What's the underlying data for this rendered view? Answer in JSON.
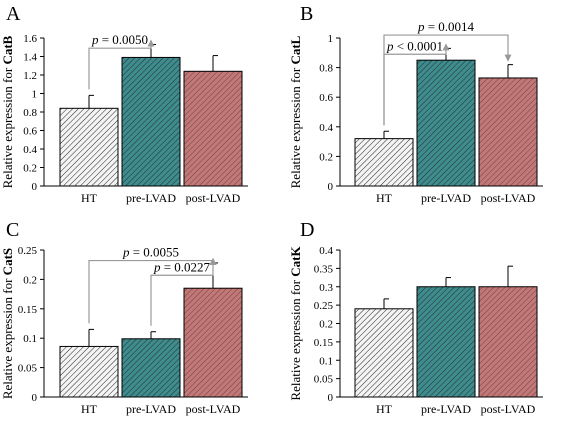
{
  "colors": {
    "HT": "#f4f4f4",
    "pre-LVAD": "#3e8c8e",
    "post-LVAD": "#c47777",
    "hatch": "#222222",
    "annotation": "#999999"
  },
  "chart_data": [
    {
      "type": "bar",
      "panel": "A",
      "ylabel_prefix": "Relative expression for ",
      "ylabel_gene": "CatB",
      "categories": [
        "HT",
        "pre-LVAD",
        "post-LVAD"
      ],
      "values": [
        0.84,
        1.39,
        1.24
      ],
      "errors": [
        0.14,
        0.14,
        0.17
      ],
      "ylim": [
        0,
        1.6
      ],
      "yticks": [
        "0",
        "0.2",
        "0.4",
        "0.6",
        "0.8",
        "1",
        "1.2",
        "1.4",
        "1.6"
      ],
      "annotations": [
        {
          "from": 0,
          "to": 1,
          "p": "= 0.0050",
          "level": 1.49
        }
      ]
    },
    {
      "type": "bar",
      "panel": "B",
      "ylabel_prefix": "Relative expression for ",
      "ylabel_gene": "CatL",
      "categories": [
        "HT",
        "pre-LVAD",
        "post-LVAD"
      ],
      "values": [
        0.32,
        0.85,
        0.73
      ],
      "errors": [
        0.05,
        0.08,
        0.09
      ],
      "ylim": [
        0,
        1
      ],
      "yticks": [
        "0",
        "0.2",
        "0.4",
        "0.6",
        "0.8",
        "1"
      ],
      "annotations": [
        {
          "from": 0,
          "to": 1,
          "p": "< 0.0001",
          "level": 0.89
        },
        {
          "from": 0,
          "to": 2,
          "p": "= 0.0014",
          "level": 1.02
        }
      ]
    },
    {
      "type": "bar",
      "panel": "C",
      "ylabel_prefix": "Relative expression for ",
      "ylabel_gene": "CatS",
      "categories": [
        "HT",
        "pre-LVAD",
        "post-LVAD"
      ],
      "values": [
        0.086,
        0.099,
        0.185
      ],
      "errors": [
        0.029,
        0.012,
        0.043
      ],
      "ylim": [
        0,
        0.25
      ],
      "yticks": [
        "0",
        "0.05",
        "0.1",
        "0.15",
        "0.2",
        "0.25"
      ],
      "annotations": [
        {
          "from": 0,
          "to": 2,
          "p": "= 0.0055",
          "level": 0.232
        },
        {
          "from": 1,
          "to": 2,
          "p": "= 0.0227",
          "level": 0.207
        }
      ]
    },
    {
      "type": "bar",
      "panel": "D",
      "ylabel_prefix": "Relative expression for ",
      "ylabel_gene": "CatK",
      "categories": [
        "HT",
        "pre-LVAD",
        "post-LVAD"
      ],
      "values": [
        0.24,
        0.3,
        0.3
      ],
      "errors": [
        0.027,
        0.025,
        0.056
      ],
      "ylim": [
        0,
        0.4
      ],
      "yticks": [
        "0",
        "0.05",
        "0.1",
        "0.15",
        "0.2",
        "0.25",
        "0.3",
        "0.35",
        "0.4"
      ],
      "annotations": []
    }
  ]
}
